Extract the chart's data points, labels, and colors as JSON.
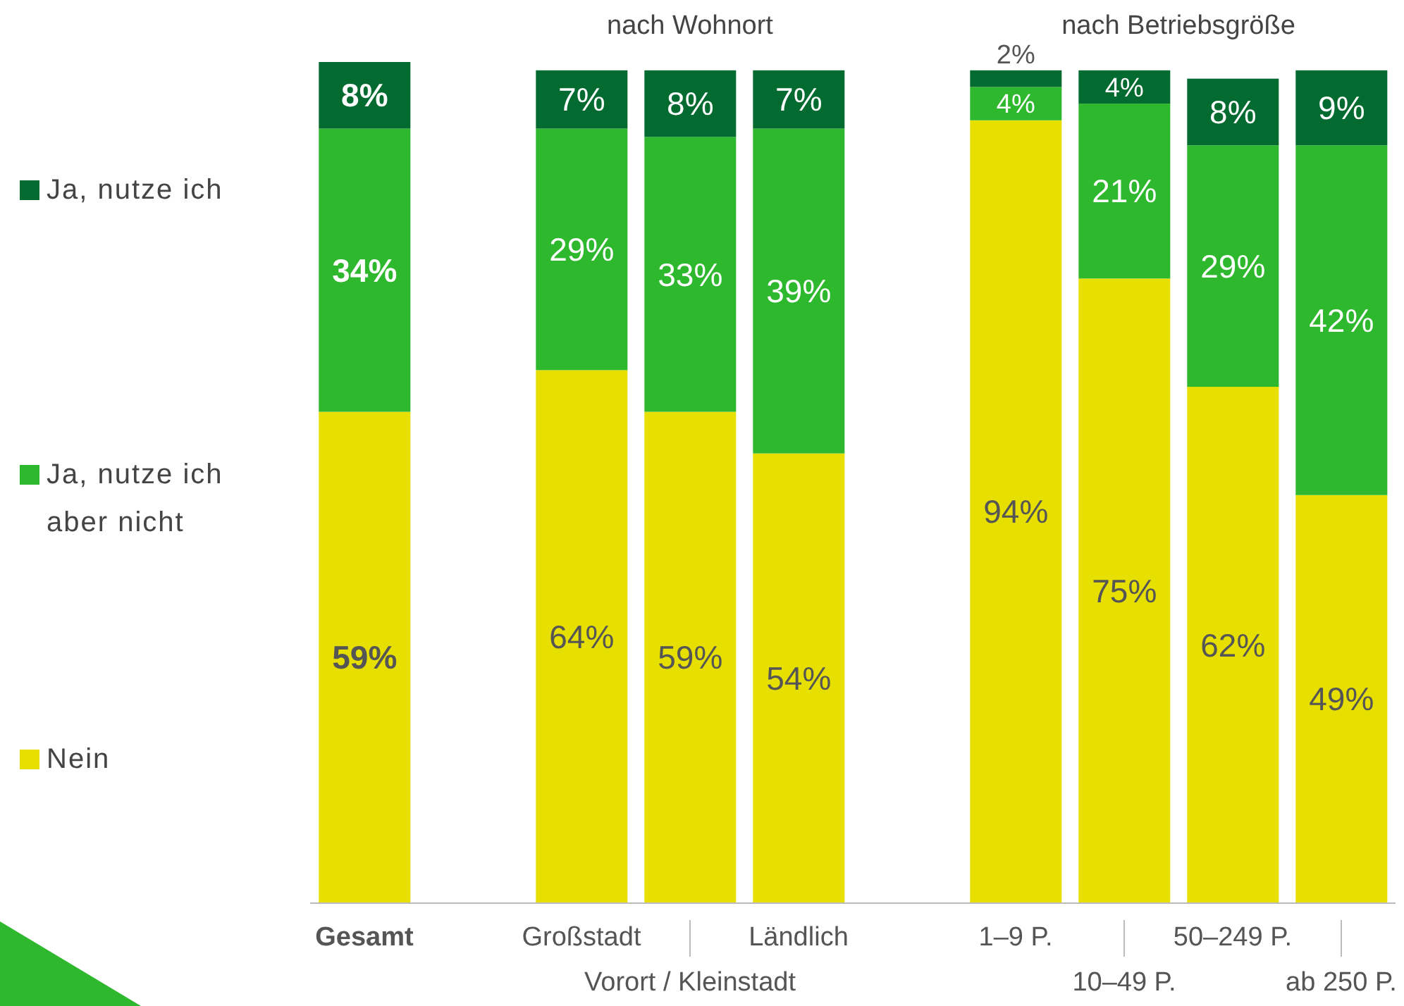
{
  "chart_data": {
    "type": "bar",
    "stacked": true,
    "categories": [
      "Gesamt",
      null,
      "Großstadt",
      "Vorort / Kleinstadt",
      "Ländlich",
      null,
      "1–9 P.",
      "10–49 P.",
      "50–249 P.",
      "ab 250 P."
    ],
    "series": [
      {
        "name": "Nein",
        "color": "#e6df00",
        "values": [
          59,
          null,
          64,
          59,
          54,
          null,
          94,
          75,
          62,
          49
        ],
        "value_labels": [
          "59%",
          null,
          "64%",
          "59%",
          "54%",
          null,
          "94%",
          "75%",
          "62%",
          "49%"
        ]
      },
      {
        "name": "Ja, nutze ich aber nicht",
        "color": "#2eb82e",
        "values": [
          34,
          null,
          29,
          33,
          39,
          null,
          4,
          21,
          29,
          42
        ],
        "value_labels": [
          "34%",
          null,
          "29%",
          "33%",
          "39%",
          null,
          "4%",
          "21%",
          "29%",
          "42%"
        ]
      },
      {
        "name": "Ja, nutze ich",
        "color": "#036b30",
        "values": [
          8,
          null,
          7,
          8,
          7,
          null,
          2,
          4,
          8,
          9
        ],
        "value_labels": [
          "8%",
          null,
          "7%",
          "8%",
          "7%",
          null,
          "2%",
          "4%",
          "8%",
          "9%"
        ]
      }
    ],
    "tick_labels": "x",
    "legend": "left",
    "annotations": [
      "nach Wohnort",
      "nach Betriebsgröße"
    ]
  }
}
